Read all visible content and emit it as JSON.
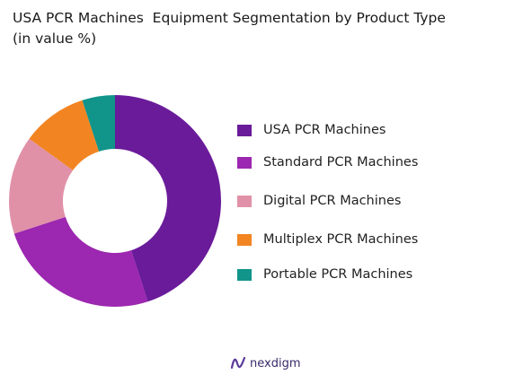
{
  "header": {
    "title": "USA PCR Machines  Equipment Segmentation by Product Type\n(in value %)"
  },
  "chart_data": {
    "type": "donut",
    "title": "USA PCR Machines  Equipment Segmentation by Product Type (in value %)",
    "categories": [
      "USA PCR Machines",
      "Standard PCR Machines",
      "Digital PCR Machines",
      "Multiplex PCR Machines",
      "Portable PCR Machines"
    ],
    "values": [
      45,
      25,
      15,
      10,
      5
    ],
    "colors": [
      "#6a1b9a",
      "#9c27b0",
      "#e091a8",
      "#f28522",
      "#11948a"
    ],
    "legend_position": "right",
    "show_data_labels": false
  },
  "brand": {
    "name": "nexdigm"
  }
}
